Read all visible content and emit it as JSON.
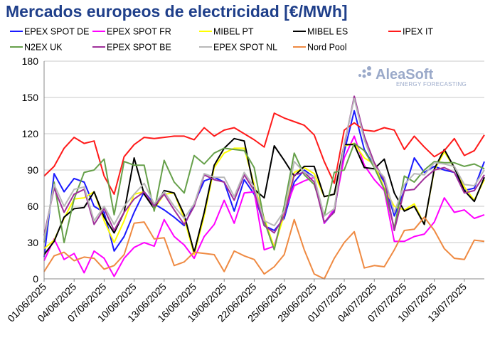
{
  "chart_data": {
    "type": "line",
    "title": "Mercados europeos de electricidad [€/MWh]",
    "xlabel": "",
    "ylabel": "",
    "ylim": [
      0,
      180
    ],
    "yticks": [
      0,
      30,
      60,
      90,
      120,
      150,
      180
    ],
    "grid": true,
    "legend_position": "top",
    "x": [
      "01/06/2025",
      "02/06/2025",
      "03/06/2025",
      "04/06/2025",
      "05/06/2025",
      "06/06/2025",
      "07/06/2025",
      "08/06/2025",
      "09/06/2025",
      "10/06/2025",
      "11/06/2025",
      "12/06/2025",
      "13/06/2025",
      "14/06/2025",
      "15/06/2025",
      "16/06/2025",
      "17/06/2025",
      "18/06/2025",
      "19/06/2025",
      "20/06/2025",
      "21/06/2025",
      "22/06/2025",
      "23/06/2025",
      "24/06/2025",
      "25/06/2025",
      "26/06/2025",
      "27/06/2025",
      "28/06/2025",
      "29/06/2025",
      "30/06/2025",
      "01/07/2025",
      "02/07/2025",
      "03/07/2025",
      "04/07/2025",
      "05/07/2025",
      "06/07/2025",
      "07/07/2025",
      "08/07/2025",
      "09/07/2025",
      "10/07/2025",
      "11/07/2025",
      "12/07/2025",
      "13/07/2025",
      "14/07/2025",
      "15/07/2025"
    ],
    "xtick_labels": [
      "01/06/2025",
      "04/06/2025",
      "07/06/2025",
      "10/06/2025",
      "13/06/2025",
      "16/06/2025",
      "19/06/2025",
      "22/06/2025",
      "25/06/2025",
      "28/06/2025",
      "01/07/2025",
      "04/07/2025",
      "07/07/2025",
      "10/07/2025",
      "13/07/2025"
    ],
    "series": [
      {
        "name": "EPEX SPOT DE",
        "color": "#1a1aff",
        "values": [
          18,
          87,
          72,
          83,
          80,
          60,
          55,
          23,
          35,
          55,
          72,
          62,
          57,
          51,
          44,
          62,
          81,
          84,
          80,
          56,
          82,
          70,
          44,
          40,
          50,
          80,
          90,
          84,
          46,
          56,
          105,
          139,
          107,
          93,
          80,
          52,
          73,
          100,
          88,
          93,
          90,
          88,
          73,
          75,
          97
        ]
      },
      {
        "name": "EPEX SPOT FR",
        "color": "#ff00ff",
        "values": [
          15,
          33,
          16,
          21,
          5,
          23,
          17,
          2,
          17,
          26,
          30,
          27,
          49,
          35,
          28,
          17,
          35,
          45,
          65,
          46,
          71,
          72,
          24,
          27,
          55,
          77,
          81,
          84,
          46,
          58,
          100,
          118,
          94,
          82,
          73,
          31,
          31,
          35,
          37,
          47,
          67,
          55,
          57,
          50,
          53
        ]
      },
      {
        "name": "MIBEL PT",
        "color": "#ffff00",
        "values": [
          25,
          32,
          50,
          66,
          67,
          72,
          48,
          30,
          48,
          70,
          72,
          58,
          70,
          71,
          50,
          20,
          52,
          92,
          104,
          108,
          108,
          78,
          50,
          26,
          53,
          88,
          92,
          87,
          68,
          70,
          110,
          112,
          100,
          95,
          75,
          60,
          57,
          62,
          45,
          90,
          105,
          92,
          76,
          65,
          82
        ]
      },
      {
        "name": "MIBEL ES",
        "color": "#000000",
        "values": [
          20,
          31,
          51,
          58,
          59,
          72,
          51,
          38,
          55,
          100,
          70,
          58,
          73,
          71,
          53,
          22,
          55,
          94,
          108,
          116,
          114,
          74,
          67,
          110,
          98,
          85,
          93,
          93,
          68,
          70,
          111,
          111,
          92,
          91,
          99,
          71,
          56,
          60,
          45,
          91,
          107,
          92,
          73,
          64,
          84
        ]
      },
      {
        "name": "IPEX IT",
        "color": "#ff1a1a",
        "values": [
          85,
          93,
          108,
          117,
          112,
          114,
          85,
          70,
          101,
          111,
          117,
          116,
          117,
          118,
          118,
          115,
          125,
          118,
          123,
          125,
          120,
          115,
          109,
          137,
          133,
          130,
          127,
          119,
          97,
          79,
          123,
          129,
          123,
          122,
          125,
          123,
          107,
          118,
          109,
          101,
          106,
          116,
          102,
          106,
          119
        ]
      },
      {
        "name": "N2EX UK",
        "color": "#66a04a",
        "values": [
          30,
          80,
          30,
          66,
          88,
          90,
          99,
          53,
          97,
          94,
          94,
          56,
          98,
          80,
          71,
          102,
          95,
          104,
          108,
          107,
          106,
          92,
          48,
          24,
          60,
          104,
          86,
          78,
          52,
          88,
          90,
          112,
          106,
          92,
          74,
          42,
          85,
          80,
          90,
          97,
          96,
          96,
          93,
          95,
          91
        ]
      },
      {
        "name": "EPEX SPOT BE",
        "color": "#a0309a",
        "values": [
          36,
          75,
          55,
          70,
          74,
          45,
          58,
          40,
          55,
          66,
          72,
          60,
          70,
          57,
          45,
          60,
          86,
          82,
          80,
          65,
          86,
          73,
          44,
          38,
          52,
          86,
          88,
          80,
          47,
          55,
          110,
          151,
          118,
          96,
          82,
          40,
          73,
          74,
          83,
          90,
          92,
          88,
          71,
          73,
          86
        ]
      },
      {
        "name": "EPEX SPOT NL",
        "color": "#b8b8b8",
        "values": [
          32,
          78,
          60,
          74,
          76,
          48,
          60,
          45,
          60,
          70,
          79,
          62,
          72,
          60,
          50,
          62,
          87,
          84,
          84,
          68,
          88,
          76,
          48,
          44,
          56,
          97,
          88,
          84,
          52,
          58,
          112,
          149,
          115,
          93,
          84,
          55,
          78,
          87,
          86,
          96,
          95,
          93,
          78,
          77,
          90
        ]
      },
      {
        "name": "Nord Pool",
        "color": "#ef8a42",
        "values": [
          6,
          19,
          22,
          15,
          18,
          17,
          8,
          11,
          20,
          46,
          47,
          33,
          34,
          11,
          14,
          22,
          21,
          20,
          6,
          23,
          19,
          16,
          4,
          10,
          20,
          49,
          24,
          4,
          0,
          17,
          30,
          39,
          9,
          11,
          10,
          24,
          40,
          41,
          51,
          40,
          25,
          17,
          16,
          32,
          31
        ]
      }
    ]
  },
  "watermark": {
    "brand": "AleaSoft",
    "tagline": "ENERGY FORECASTING"
  }
}
